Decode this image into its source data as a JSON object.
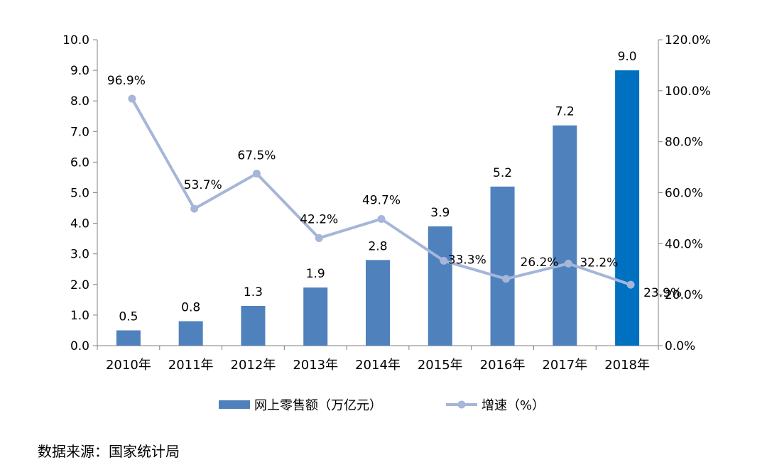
{
  "chart_data": {
    "type": "bar",
    "categories": [
      "2010年",
      "2011年",
      "2012年",
      "2013年",
      "2014年",
      "2015年",
      "2016年",
      "2017年",
      "2018年"
    ],
    "series": [
      {
        "name": "网上零售额（万亿元）",
        "type": "bar",
        "axis": "left",
        "values": [
          0.5,
          0.8,
          1.3,
          1.9,
          2.8,
          3.9,
          5.2,
          7.2,
          9.0
        ],
        "labels": [
          "0.5",
          "0.8",
          "1.3",
          "1.9",
          "2.8",
          "3.9",
          "5.2",
          "7.2",
          "9.0"
        ],
        "color": "#4f81bd",
        "highlight_color": "#0070c0",
        "highlight_index": 8
      },
      {
        "name": "增速（%）",
        "type": "line",
        "axis": "right",
        "values": [
          96.9,
          53.7,
          67.5,
          42.2,
          49.7,
          33.3,
          26.2,
          32.2,
          23.9
        ],
        "labels": [
          "96.9%",
          "53.7%",
          "67.5%",
          "42.2%",
          "49.7%",
          "33.3%",
          "26.2%",
          "32.2%",
          "23.9%"
        ],
        "color": "#a5b6d8"
      }
    ],
    "y_left": {
      "ylim": [
        0,
        10
      ],
      "ticks": [
        "0.0",
        "1.0",
        "2.0",
        "3.0",
        "4.0",
        "5.0",
        "6.0",
        "7.0",
        "8.0",
        "9.0",
        "10.0"
      ]
    },
    "y_right": {
      "ylim": [
        0,
        120
      ],
      "ticks": [
        "0.0%",
        "20.0%",
        "40.0%",
        "60.0%",
        "80.0%",
        "100.0%",
        "120.0%"
      ]
    },
    "grid": false,
    "legend": "bottom"
  },
  "source": "数据来源：国家统计局"
}
